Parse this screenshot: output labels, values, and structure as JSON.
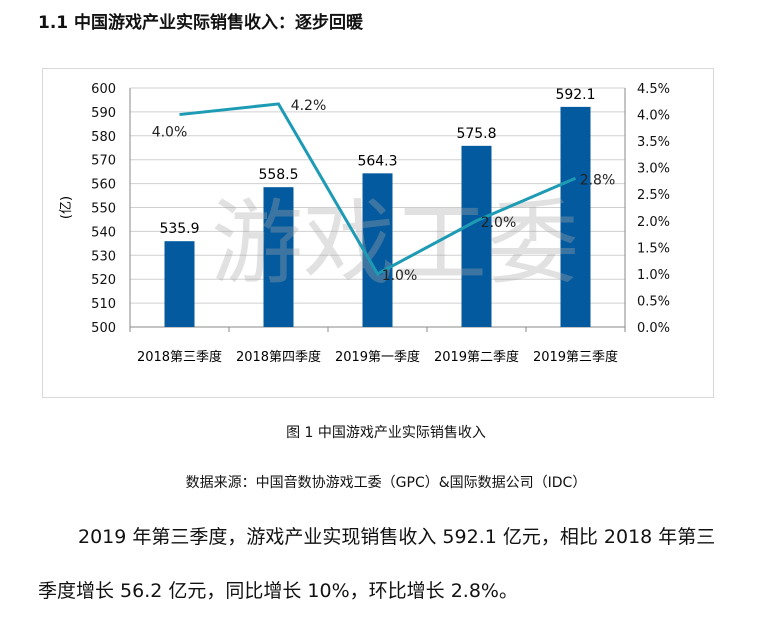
{
  "heading": "1.1  中国游戏产业实际销售收入：逐步回暖",
  "figure_caption": "图 1  中国游戏产业实际销售收入",
  "source": "数据来源：中国音数协游戏工委（GPC）&国际数据公司（IDC）",
  "paragraph": [
    "2019 年第三季度，游戏产业实现销售收入 592.1 亿元，相比 2018 年第三",
    "季度增长 56.2 亿元，同比增长 10%，环比增长 2.8%。"
  ],
  "chart_data": {
    "type": "bar+line",
    "categories": [
      "2018第三季度",
      "2018第四季度",
      "2019第一季度",
      "2019第二季度",
      "2019第三季度"
    ],
    "series": [
      {
        "type": "bar",
        "axis": "left",
        "values": [
          535.9,
          558.5,
          564.3,
          575.8,
          592.1
        ],
        "labels": [
          "535.9",
          "558.5",
          "564.3",
          "575.8",
          "592.1"
        ],
        "color": "#035a9e"
      },
      {
        "type": "line",
        "axis": "right",
        "values": [
          4.0,
          4.2,
          1.0,
          2.0,
          2.8
        ],
        "labels": [
          "4.0%",
          "4.2%",
          "1.0%",
          "2.0%",
          "2.8%"
        ],
        "color": "#1e9bb4"
      }
    ],
    "ylabel": "(亿)",
    "ylim": [
      500,
      600
    ],
    "yticks": [
      "500",
      "510",
      "520",
      "530",
      "540",
      "550",
      "560",
      "570",
      "580",
      "590",
      "600"
    ],
    "y2lim": [
      0,
      4.5
    ],
    "y2ticks": [
      "0.0%",
      "0.5%",
      "1.0%",
      "1.5%",
      "2.0%",
      "2.5%",
      "3.0%",
      "3.5%",
      "4.0%",
      "4.5%"
    ],
    "grid": true,
    "watermark": "游戏工委"
  }
}
